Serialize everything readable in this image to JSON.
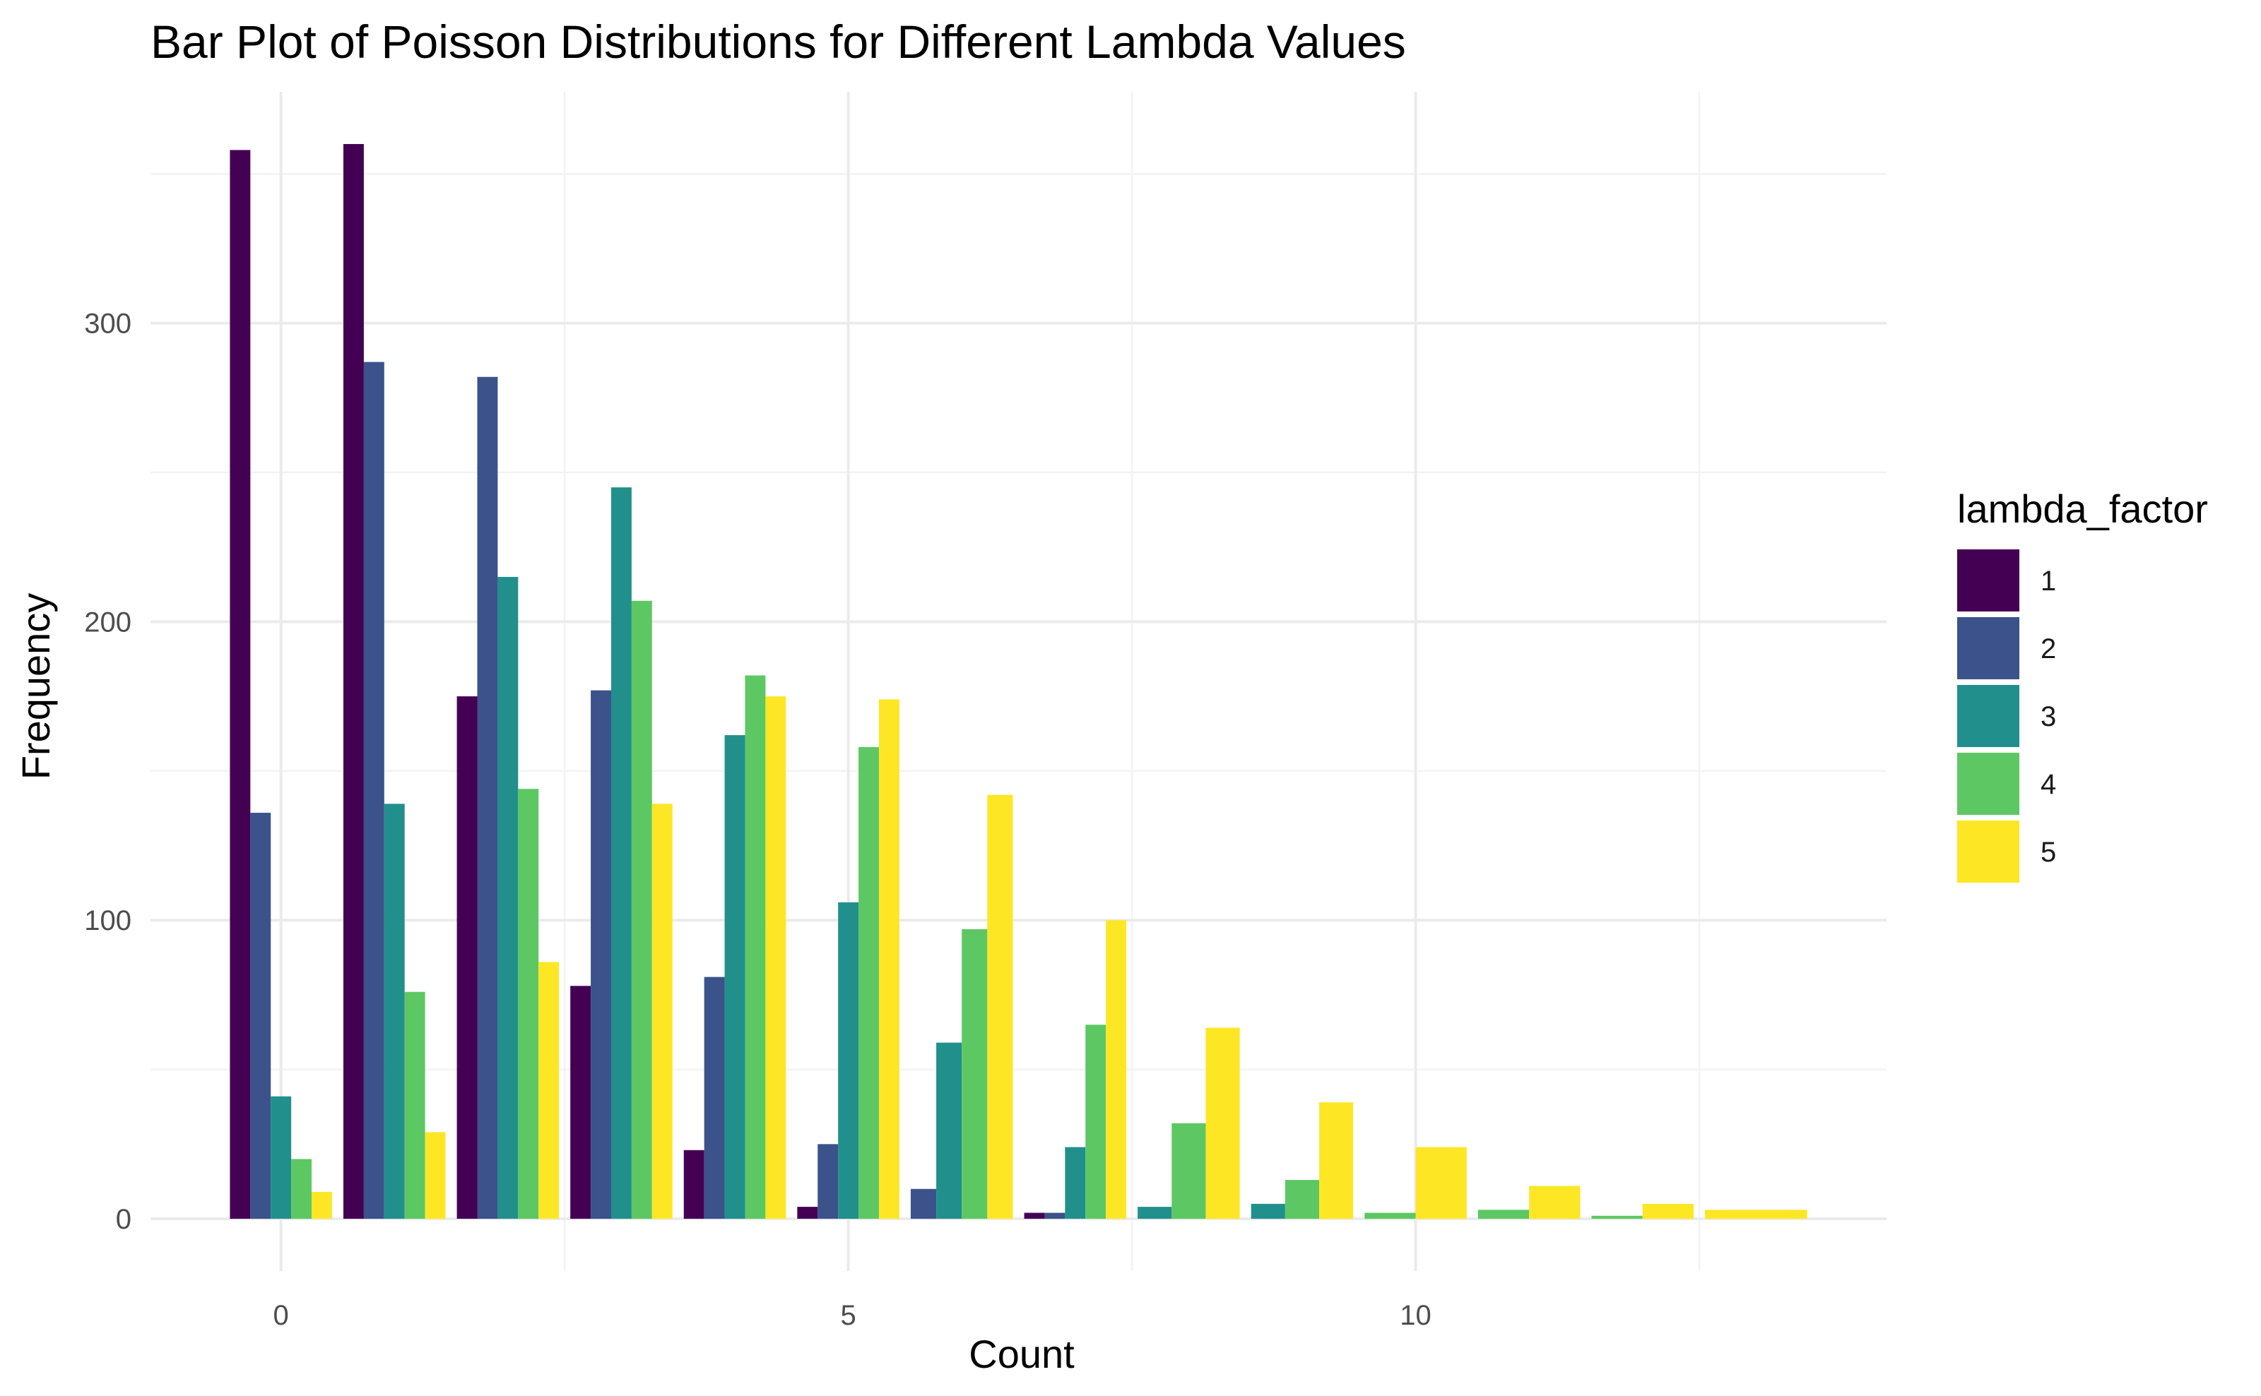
{
  "chart_data": {
    "type": "bar",
    "title": "Bar Plot of Poisson Distributions for Different Lambda Values",
    "xlabel": "Count",
    "ylabel": "Frequency",
    "x": [
      0,
      1,
      2,
      3,
      4,
      5,
      6,
      7,
      8,
      9,
      10,
      11,
      12,
      13
    ],
    "xlim": [
      -1.15,
      14.15
    ],
    "ylim": [
      -17.5,
      377.5
    ],
    "x_ticks": [
      0,
      5,
      10
    ],
    "y_ticks": [
      0,
      100,
      200,
      300
    ],
    "x_tick_labels": [
      "0",
      "5",
      "10"
    ],
    "y_tick_labels": [
      "0",
      "100",
      "200",
      "300"
    ],
    "grid": true,
    "legend": {
      "title": "lambda_factor",
      "position": "right"
    },
    "series": [
      {
        "name": "1",
        "color": "#440154",
        "points": [
          [
            0,
            358
          ],
          [
            1,
            360
          ],
          [
            2,
            175
          ],
          [
            3,
            78
          ],
          [
            4,
            23
          ],
          [
            5,
            4
          ],
          [
            7,
            2
          ]
        ]
      },
      {
        "name": "2",
        "color": "#3B528B",
        "points": [
          [
            0,
            136
          ],
          [
            1,
            287
          ],
          [
            2,
            282
          ],
          [
            3,
            177
          ],
          [
            4,
            81
          ],
          [
            5,
            25
          ],
          [
            6,
            10
          ],
          [
            7,
            2
          ]
        ]
      },
      {
        "name": "3",
        "color": "#21908C",
        "points": [
          [
            0,
            41
          ],
          [
            1,
            139
          ],
          [
            2,
            215
          ],
          [
            3,
            245
          ],
          [
            4,
            162
          ],
          [
            5,
            106
          ],
          [
            6,
            59
          ],
          [
            7,
            24
          ],
          [
            8,
            4
          ],
          [
            9,
            5
          ]
        ]
      },
      {
        "name": "4",
        "color": "#5DC863",
        "points": [
          [
            0,
            20
          ],
          [
            1,
            76
          ],
          [
            2,
            144
          ],
          [
            3,
            207
          ],
          [
            4,
            182
          ],
          [
            5,
            158
          ],
          [
            6,
            97
          ],
          [
            7,
            65
          ],
          [
            8,
            32
          ],
          [
            9,
            13
          ],
          [
            10,
            2
          ],
          [
            11,
            3
          ],
          [
            12,
            1
          ]
        ]
      },
      {
        "name": "5",
        "color": "#FDE725",
        "points": [
          [
            0,
            9
          ],
          [
            1,
            29
          ],
          [
            2,
            86
          ],
          [
            3,
            139
          ],
          [
            4,
            175
          ],
          [
            5,
            174
          ],
          [
            6,
            142
          ],
          [
            7,
            100
          ],
          [
            8,
            64
          ],
          [
            9,
            39
          ],
          [
            10,
            24
          ],
          [
            11,
            11
          ],
          [
            12,
            5
          ],
          [
            13,
            3
          ]
        ]
      }
    ]
  }
}
